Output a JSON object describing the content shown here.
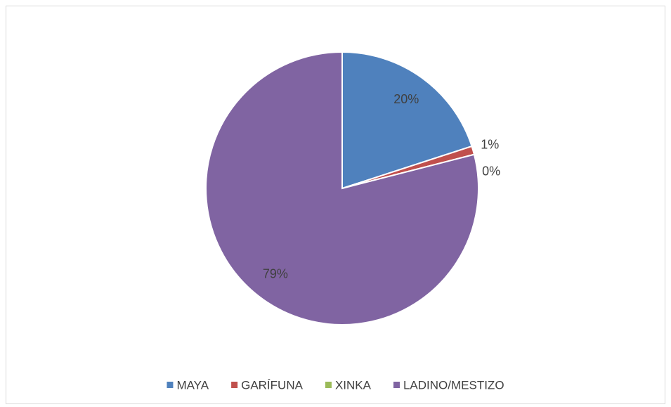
{
  "chart_data": {
    "type": "pie",
    "categories": [
      "MAYA",
      "GARÍFUNA",
      "XINKA",
      "LADINO/MESTIZO"
    ],
    "values": [
      20,
      1,
      0,
      79
    ],
    "value_labels": [
      "20%",
      "1%",
      "0%",
      "79%"
    ],
    "colors": [
      "#4f81bd",
      "#c0504d",
      "#9bbb59",
      "#8064a2"
    ],
    "legend": "bottom"
  }
}
